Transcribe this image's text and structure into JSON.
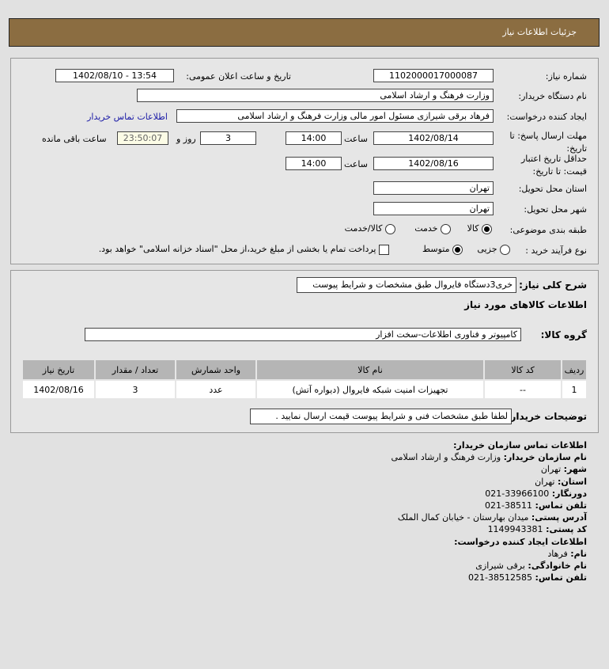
{
  "header": {
    "title": "جزئیات اطلاعات نیاز"
  },
  "form": {
    "need_number_label": "شماره نیاز:",
    "need_number": "1102000017000087",
    "announce_label": "تاریخ و ساعت اعلان عمومی:",
    "announce_value": "1402/08/10 - 13:54",
    "buyer_org_label": "نام دستگاه خریدار:",
    "buyer_org": "وزارت فرهنگ و ارشاد اسلامی",
    "creator_label": "ایجاد کننده درخواست:",
    "creator": "فرهاد برقی شیرازی مسئول امور مالی وزارت فرهنگ و ارشاد اسلامی",
    "contact_link": "اطلاعات تماس خریدار",
    "deadline_label": "مهلت ارسال پاسخ: تا تاریخ:",
    "deadline_date": "1402/08/14",
    "time_label": "ساعت",
    "deadline_time": "14:00",
    "days": "3",
    "days_label": "روز و",
    "remaining": "23:50:07",
    "remaining_label": "ساعت باقی مانده",
    "validity_label": "حداقل تاریخ اعتبار قیمت: تا تاریخ:",
    "validity_date": "1402/08/16",
    "validity_time": "14:00",
    "province_label": "استان محل تحویل:",
    "province": "تهران",
    "city_label": "شهر محل تحویل:",
    "city": "تهران",
    "category_label": "طبقه بندی موضوعی:",
    "category_options": [
      "کالا",
      "خدمت",
      "کالا/خدمت"
    ],
    "category_selected": "کالا",
    "process_label": "نوع فرآیند خرید :",
    "process_options": [
      "جزیی",
      "متوسط"
    ],
    "process_selected": "متوسط",
    "payment_note": "پرداخت تمام یا بخشی از مبلغ خرید،از محل \"اسناد خزانه اسلامی\" خواهد بود."
  },
  "details": {
    "description_label": "شرح کلی نیاز:",
    "description": "خری3دستگاه فایروال طبق مشخصات و شرایط پیوست",
    "goods_title": "اطلاعات کالاهای مورد نیاز",
    "group_label": "گروه کالا:",
    "group": "کامپیوتر و فناوری اطلاعات-سخت افزار",
    "table": {
      "headers": [
        "ردیف",
        "کد کالا",
        "نام کالا",
        "واحد شمارش",
        "تعداد / مقدار",
        "تاریخ نیاز"
      ],
      "rows": [
        [
          "1",
          "--",
          "تجهیزات امنیت شبکه فایروال (دیواره آتش)",
          "عدد",
          "3",
          "1402/08/16"
        ]
      ]
    },
    "notes_label": "توضیحات خریدار:",
    "notes": "لطفا طبق مشخصات فنی و شرایط پیوست قیمت ارسال نمایید ."
  },
  "contact": {
    "title": "اطلاعات تماس سازمان خریدار:",
    "lines": [
      {
        "k": "نام سازمان خریدار:",
        "v": "وزارت فرهنگ و ارشاد اسلامی"
      },
      {
        "k": "شهر:",
        "v": "تهران"
      },
      {
        "k": "استان:",
        "v": "تهران"
      },
      {
        "k": "دورنگار:",
        "v": "33966100-021"
      },
      {
        "k": "تلفن تماس:",
        "v": "38511-021"
      },
      {
        "k": "آدرس پستی:",
        "v": "میدان بهارستان - خیابان کمال الملک"
      },
      {
        "k": "کد پستی:",
        "v": "1149943381"
      }
    ],
    "creator_title": "اطلاعات ایجاد کننده درخواست:",
    "creator_lines": [
      {
        "k": "نام:",
        "v": "فرهاد"
      },
      {
        "k": "نام خانوادگی:",
        "v": "برقی شیرازی"
      },
      {
        "k": "تلفن تماس:",
        "v": "38512585-021"
      }
    ]
  }
}
